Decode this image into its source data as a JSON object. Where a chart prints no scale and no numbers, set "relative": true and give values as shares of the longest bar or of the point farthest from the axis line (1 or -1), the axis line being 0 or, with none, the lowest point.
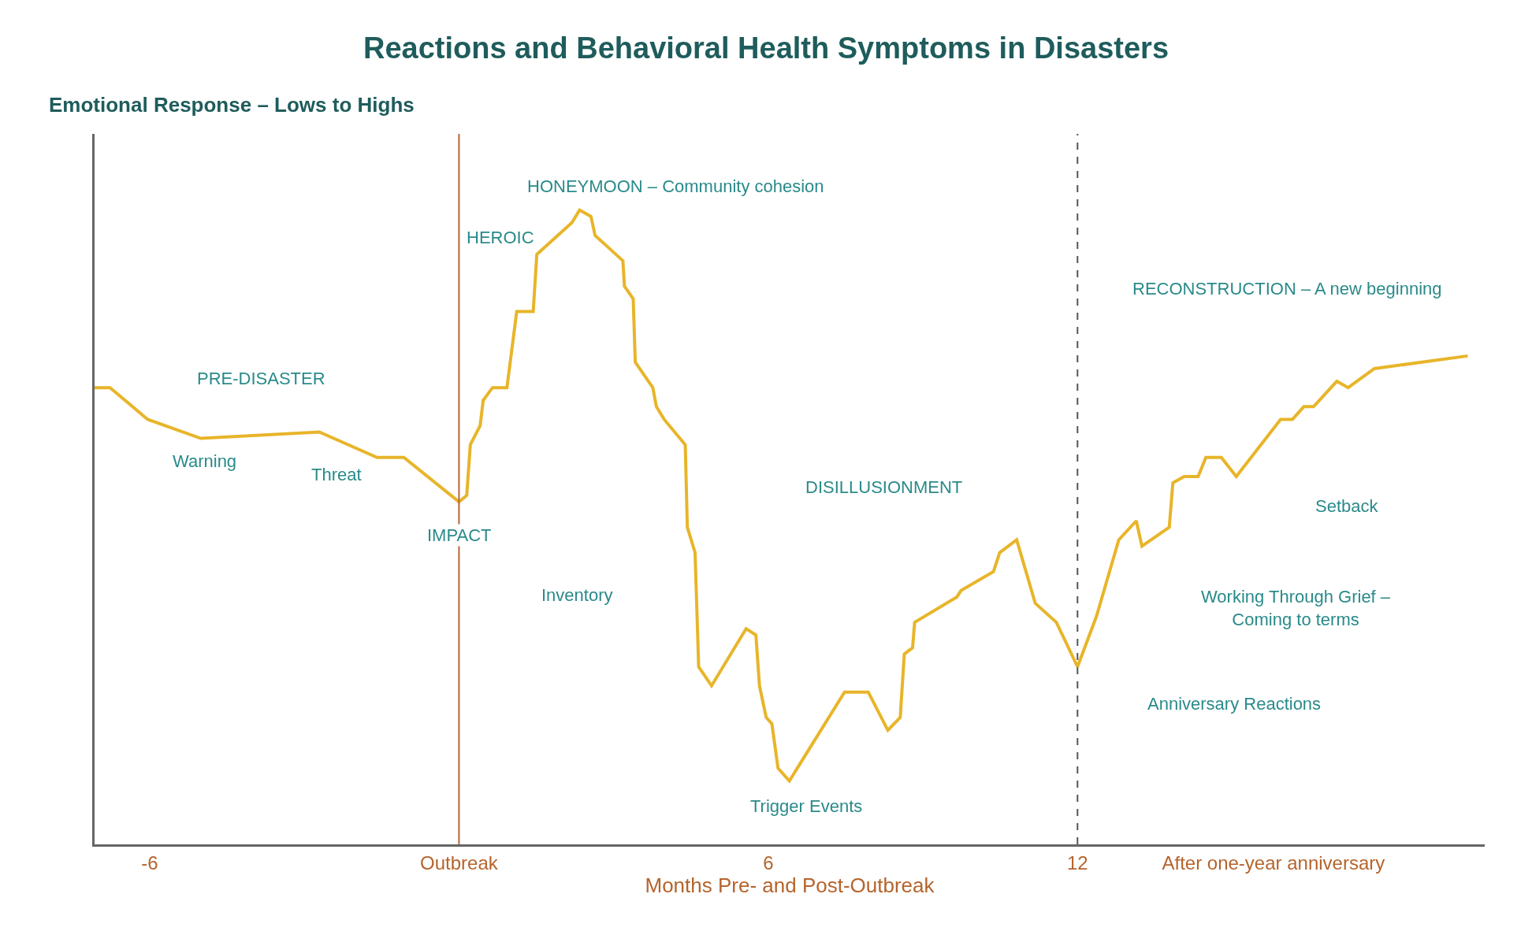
{
  "chart_data": {
    "type": "line",
    "title": "Reactions and Behavioral Health Symptoms in Disasters",
    "ylabel": "Emotional Response – Lows to Highs",
    "xlabel": "Months Pre- and Post-Outbreak",
    "relative": true,
    "xlim": [
      -7.07,
      19.9
    ],
    "xticks": [
      -6,
      {
        "value": 0,
        "label": "Outbreak"
      },
      6,
      12,
      {
        "value": 15.8,
        "label": "After one-year anniversary"
      }
    ],
    "marker": "none",
    "line_style": "solid",
    "series": [
      {
        "color": "#e8b52a",
        "x": [
          -7.07,
          -6.77,
          -6.04,
          -5.01,
          -2.71,
          -1.59,
          -1.07,
          0,
          0.15,
          0.22,
          0.41,
          0.47,
          0.65,
          0.93,
          1.12,
          1.44,
          1.51,
          2.19,
          2.34,
          2.56,
          2.64,
          3.18,
          3.21,
          3.38,
          3.42,
          3.76,
          3.83,
          3.98,
          4.39,
          4.43,
          4.58,
          4.65,
          4.9,
          5.57,
          5.76,
          5.83,
          5.96,
          6.07,
          6.19,
          6.41,
          7.48,
          7.94,
          8.32,
          8.56,
          8.64,
          8.8,
          8.84,
          9.66,
          9.74,
          10.37,
          10.49,
          10.82,
          11.18,
          11.59,
          12.0,
          12.37,
          12.8,
          13.14,
          13.25,
          13.78,
          13.85,
          14.07,
          14.34,
          14.49,
          14.79,
          15.08,
          15.94,
          16.17,
          16.39,
          16.58,
          17.03,
          17.25,
          17.76,
          19.57
        ],
        "values": [
          0.72,
          0.72,
          0.67,
          0.64,
          0.65,
          0.61,
          0.61,
          0.54,
          0.55,
          0.63,
          0.66,
          0.7,
          0.72,
          0.72,
          0.84,
          0.84,
          0.93,
          0.98,
          1.0,
          0.99,
          0.96,
          0.92,
          0.88,
          0.86,
          0.76,
          0.72,
          0.69,
          0.67,
          0.63,
          0.5,
          0.46,
          0.28,
          0.25,
          0.34,
          0.33,
          0.25,
          0.2,
          0.19,
          0.12,
          0.1,
          0.24,
          0.24,
          0.18,
          0.2,
          0.3,
          0.31,
          0.35,
          0.39,
          0.4,
          0.43,
          0.46,
          0.48,
          0.38,
          0.35,
          0.28,
          0.36,
          0.48,
          0.51,
          0.47,
          0.5,
          0.57,
          0.58,
          0.58,
          0.61,
          0.61,
          0.58,
          0.67,
          0.67,
          0.69,
          0.69,
          0.73,
          0.72,
          0.75,
          0.77
        ]
      }
    ],
    "ref_lines": [
      {
        "axis": "x",
        "value": 0,
        "color": "#b5643c",
        "line_style": "solid"
      },
      {
        "axis": "x",
        "value": 12,
        "color": "#555555",
        "line_style": "dashed"
      }
    ],
    "annotations": [
      "PRE-DISASTER",
      "Warning",
      "Threat",
      "IMPACT",
      "HEROIC",
      "HONEYMOON – Community cohesion",
      "Inventory",
      "DISILLUSIONMENT",
      "Trigger Events",
      "RECONSTRUCTION – A new beginning",
      "Setback",
      "Working Through Grief –\nComing to terms",
      "Anniversary Reactions"
    ]
  }
}
